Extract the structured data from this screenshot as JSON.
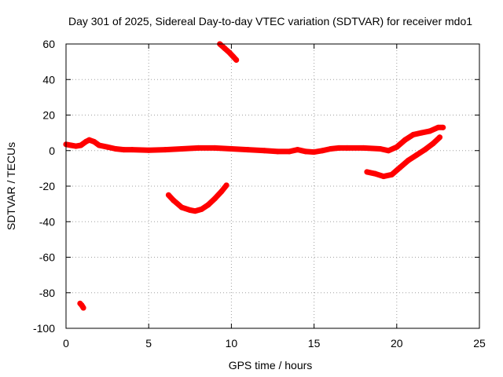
{
  "chart_data": {
    "type": "scatter",
    "title": "Day 301 of 2025, Sidereal Day-to-day VTEC variation (SDTVAR) for receiver mdo1",
    "xlabel": "GPS time / hours",
    "ylabel": "SDTVAR / TECUs",
    "xlim": [
      0,
      25
    ],
    "ylim": [
      -100,
      60
    ],
    "xticks": [
      0,
      5,
      10,
      15,
      20,
      25
    ],
    "yticks": [
      -100,
      -80,
      -60,
      -40,
      -20,
      0,
      20,
      40,
      60
    ],
    "grid": true,
    "legend": "none",
    "colors": {
      "series": "#ff0000",
      "grid": "#a0a0a0",
      "axis": "#000000"
    },
    "series": [
      {
        "name": "main-trace",
        "x": [
          0.0,
          0.3,
          0.6,
          0.9,
          1.2,
          1.4,
          1.7,
          2.0,
          2.5,
          3.0,
          3.5,
          4.0,
          5.0,
          6.0,
          7.0,
          8.0,
          9.0,
          10.0,
          11.0,
          12.0,
          12.8,
          13.5,
          14.0,
          14.5,
          15.0,
          15.5,
          16.0,
          16.5,
          17.0,
          18.0,
          19.0,
          19.5,
          20.0,
          20.5,
          21.0,
          21.5,
          22.0,
          22.5,
          22.8
        ],
        "y": [
          3.5,
          3,
          2.5,
          3,
          5,
          6,
          5,
          3,
          2,
          1,
          0.5,
          0.5,
          0.2,
          0.5,
          1,
          1.5,
          1.5,
          1,
          0.5,
          0,
          -0.5,
          -0.5,
          0.5,
          -0.5,
          -0.8,
          0,
          1,
          1.5,
          1.5,
          1.5,
          1,
          0,
          2,
          6,
          9,
          10,
          11,
          13,
          13
        ]
      },
      {
        "name": "top-arc",
        "x": [
          9.3,
          9.6,
          9.9,
          10.1,
          10.3
        ],
        "y": [
          60,
          57.5,
          55,
          53,
          51
        ]
      },
      {
        "name": "bottom-dip",
        "x": [
          6.2,
          6.5,
          7.0,
          7.5,
          7.8,
          8.2,
          8.6,
          9.0,
          9.4,
          9.7
        ],
        "y": [
          -25,
          -28,
          -32,
          -33.5,
          -34,
          -33,
          -30.5,
          -27,
          -23,
          -19.5
        ]
      },
      {
        "name": "rising-tail",
        "x": [
          18.2,
          18.7,
          19.2,
          19.7,
          20.2,
          20.7,
          21.2,
          21.7,
          22.2,
          22.6
        ],
        "y": [
          -12,
          -13,
          -14.5,
          -13.5,
          -9.5,
          -5.5,
          -2.5,
          0.5,
          4,
          7.5
        ]
      },
      {
        "name": "low-fragment",
        "x": [
          0.85,
          0.95,
          1.05
        ],
        "y": [
          -86,
          -87,
          -88.5
        ]
      }
    ]
  }
}
